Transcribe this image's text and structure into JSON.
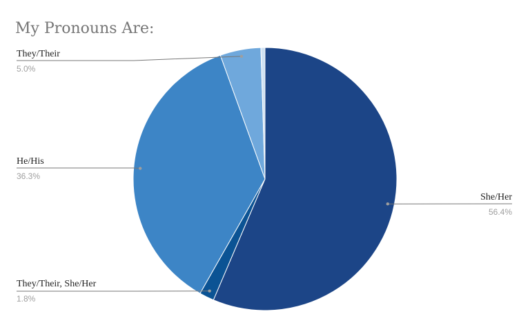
{
  "chart_data": {
    "type": "pie",
    "title": "My Pronouns Are:",
    "slices": [
      {
        "label": "She/Her",
        "value": 56.4,
        "display": "56.4%",
        "color": "#1c4587"
      },
      {
        "label": "They/Their, She/Her",
        "value": 1.8,
        "display": "1.8%",
        "color": "#0b5394"
      },
      {
        "label": "He/His",
        "value": 36.3,
        "display": "36.3%",
        "color": "#3d85c6"
      },
      {
        "label": "They/Their",
        "value": 5.0,
        "display": "5.0%",
        "color": "#6fa8dc"
      },
      {
        "label": "",
        "value": 0.5,
        "display": "",
        "color": "#cfe2f3"
      }
    ],
    "legend": "none"
  }
}
